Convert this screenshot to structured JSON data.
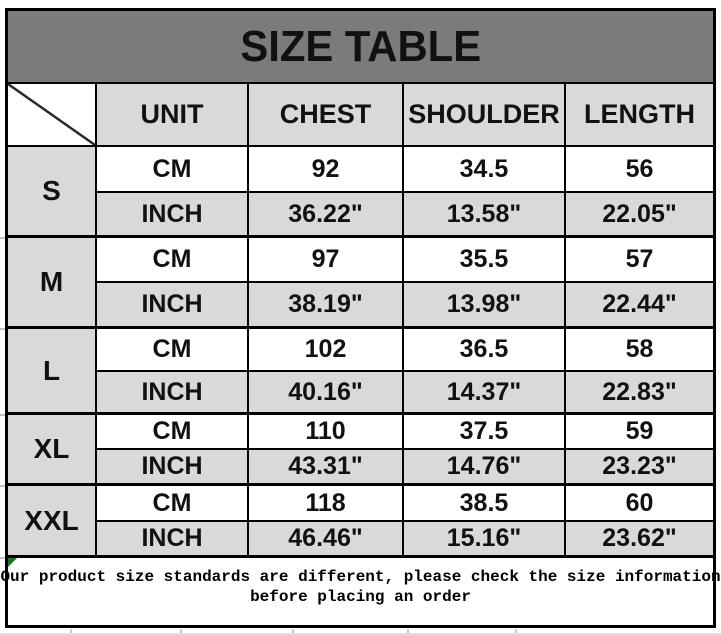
{
  "title": "SIZE TABLE",
  "table": {
    "columns": [
      "UNIT",
      "CHEST",
      "SHOULDER",
      "LENGTH"
    ],
    "unit_rows": [
      "CM",
      "INCH"
    ],
    "sizes": [
      {
        "label": "S",
        "cm": [
          "92",
          "34.5",
          "56"
        ],
        "inch": [
          "36.22\"",
          "13.58\"",
          "22.05\""
        ]
      },
      {
        "label": "M",
        "cm": [
          "97",
          "35.5",
          "57"
        ],
        "inch": [
          "38.19\"",
          "13.98\"",
          "22.44\""
        ]
      },
      {
        "label": "L",
        "cm": [
          "102",
          "36.5",
          "58"
        ],
        "inch": [
          "40.16\"",
          "14.37\"",
          "22.83\""
        ]
      },
      {
        "label": "XL",
        "cm": [
          "110",
          "37.5",
          "59"
        ],
        "inch": [
          "43.31\"",
          "14.76\"",
          "23.23\""
        ]
      },
      {
        "label": "XXL",
        "cm": [
          "118",
          "38.5",
          "60"
        ],
        "inch": [
          "46.46\"",
          "15.16\"",
          "23.62\""
        ]
      }
    ]
  },
  "note": {
    "line1": "Our product size standards are different, please check the size information",
    "line2": "before placing an order"
  },
  "colors": {
    "title_band_bg": "#7b7b7b",
    "cell_gray": "#d9d9d9",
    "border_black": "#000000",
    "comment_marker_green": "#217321",
    "text": "#111111"
  }
}
